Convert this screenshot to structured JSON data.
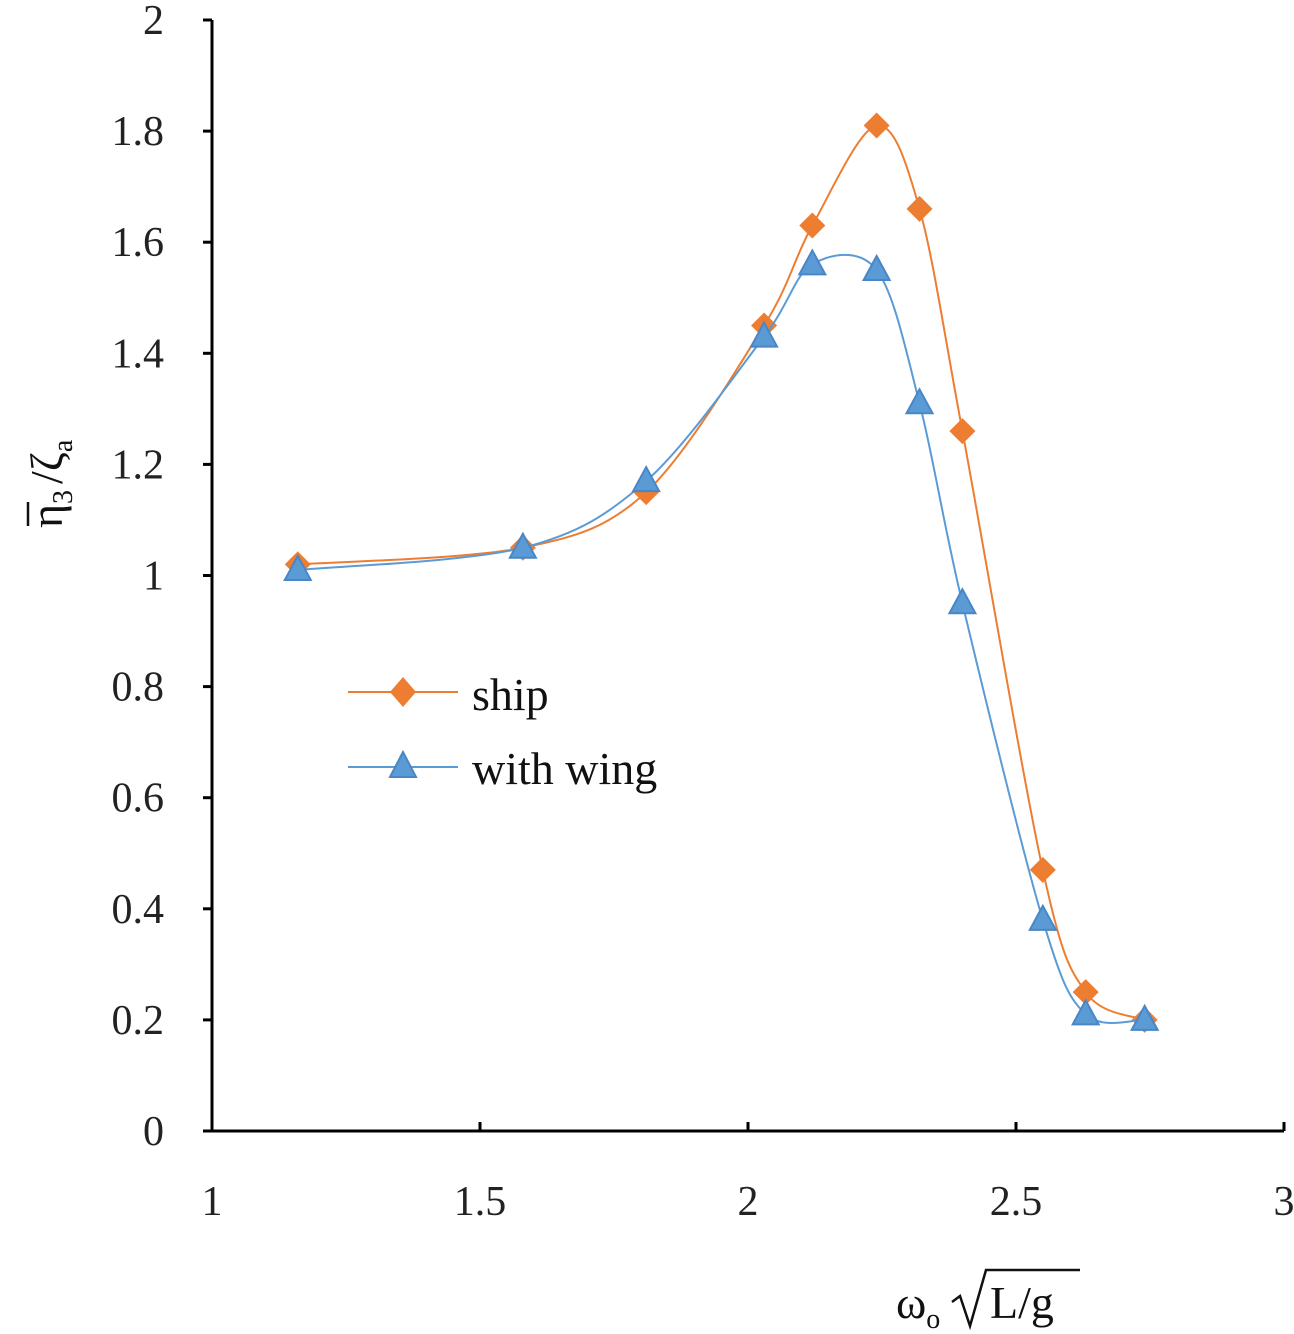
{
  "chart_data": {
    "type": "line",
    "title": "",
    "xlabel": "ωₒ√(L/g)",
    "ylabel": "η̄₃ / ζₐ",
    "xlim": [
      1,
      3
    ],
    "ylim": [
      0,
      2
    ],
    "x_ticks": [
      "1",
      "1.5",
      "2",
      "2.5",
      "3"
    ],
    "y_ticks": [
      "0",
      "0.2",
      "0.4",
      "0.6",
      "0.8",
      "1",
      "1.2",
      "1.4",
      "1.6",
      "1.8",
      "2"
    ],
    "grid": false,
    "legend_position": "center-left",
    "series": [
      {
        "name": "ship",
        "color": "#ED7D31",
        "marker": "diamond",
        "x": [
          1.16,
          1.58,
          1.81,
          2.03,
          2.12,
          2.24,
          2.32,
          2.4,
          2.55,
          2.63,
          2.74
        ],
        "y": [
          1.02,
          1.05,
          1.15,
          1.45,
          1.63,
          1.81,
          1.66,
          1.26,
          0.47,
          0.25,
          0.2
        ]
      },
      {
        "name": "with wing",
        "color": "#5B9BD5",
        "marker": "triangle",
        "x": [
          1.16,
          1.58,
          1.81,
          2.03,
          2.12,
          2.24,
          2.32,
          2.4,
          2.55,
          2.63,
          2.74
        ],
        "y": [
          1.01,
          1.05,
          1.17,
          1.43,
          1.56,
          1.55,
          1.31,
          0.95,
          0.38,
          0.21,
          0.2
        ]
      }
    ]
  },
  "axis_title_parts": {
    "x_omega": "ω",
    "x_omega_sub": "o",
    "x_radicand": "L/g",
    "y_eta": "η",
    "y_eta_sub": "3",
    "y_slash": "/",
    "y_zeta": "ζ",
    "y_zeta_sub": "a"
  }
}
